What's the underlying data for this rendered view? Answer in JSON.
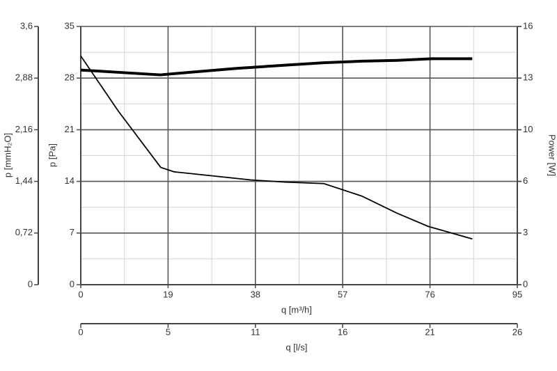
{
  "chart_data": {
    "type": "line",
    "xlabel": "q [m³/h]",
    "xlim": [
      0,
      95
    ],
    "xticks": [
      0,
      19,
      38,
      57,
      76,
      95
    ],
    "xminor": [
      9.5,
      28.5,
      47.5,
      66.5,
      85.5
    ],
    "x2label": "q [l/s]",
    "x2lim": [
      0,
      26.39
    ],
    "x2ticks": [
      0,
      {
        "value": 5.28,
        "label": "5"
      },
      {
        "value": 10.56,
        "label": "11"
      },
      {
        "value": 15.83,
        "label": "16"
      },
      {
        "value": 21.11,
        "label": "21"
      },
      {
        "value": 26.39,
        "label": "26"
      }
    ],
    "ylabel": "p [Pa]",
    "ylim": [
      0,
      35
    ],
    "yticks": [
      0,
      7,
      14,
      21,
      28,
      35
    ],
    "yminor": [
      3.5,
      10.5,
      17.5,
      24.5,
      31.5
    ],
    "y2label": "Power [W]",
    "y2lim": [
      0,
      16
    ],
    "y2ticks": [
      0,
      {
        "value": 3.2,
        "label": "3"
      },
      {
        "value": 6.4,
        "label": "6"
      },
      {
        "value": 9.6,
        "label": "10"
      },
      {
        "value": 12.8,
        "label": "13"
      },
      16
    ],
    "y3label": "p [mmH₂O]",
    "y3lim": [
      0,
      3.6
    ],
    "y3ticks": [
      0,
      {
        "value": 0.72,
        "label": "0,72"
      },
      {
        "value": 1.44,
        "label": "1,44"
      },
      {
        "value": 2.16,
        "label": "2,16"
      },
      {
        "value": 2.88,
        "label": "2,88"
      },
      {
        "value": 3.6,
        "label": "3,6"
      }
    ],
    "grid": true,
    "series": [
      {
        "color": "#000000",
        "axis": "y",
        "x": [
          0,
          8.2,
          17.4,
          20.3,
          27.9,
          37.0,
          44.5,
          52.9,
          61.2,
          68.8,
          75.6,
          85.2
        ],
        "values": [
          31.0,
          23.5,
          15.9,
          15.3,
          14.8,
          14.2,
          13.9,
          13.7,
          12.0,
          9.7,
          7.9,
          6.2
        ]
      },
      {
        "color": "#000000",
        "axis": "y2",
        "x": [
          0,
          17.3,
          23.3,
          33.9,
          44.5,
          52.9,
          61.2,
          68.8,
          76.4,
          85.2
        ],
        "values": [
          13.3,
          13.0,
          13.15,
          13.4,
          13.6,
          13.75,
          13.85,
          13.9,
          14.0,
          14.0
        ]
      }
    ]
  }
}
